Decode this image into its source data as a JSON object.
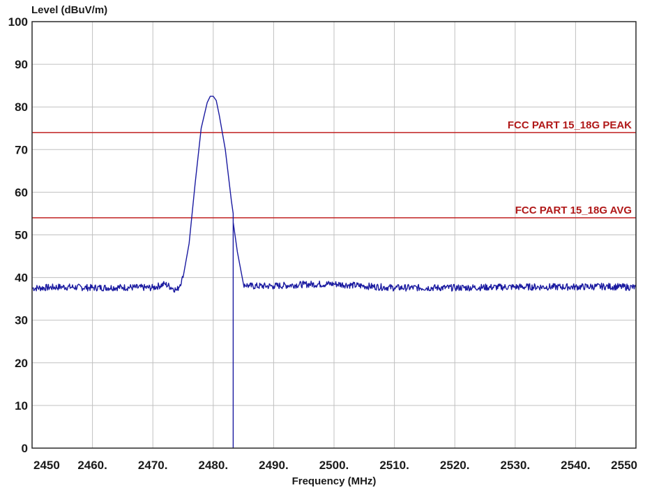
{
  "chart_data": {
    "type": "line",
    "title": "",
    "xlabel": "Frequency (MHz)",
    "ylabel": "Level (dBuV/m)",
    "xlim": [
      2450,
      2550
    ],
    "ylim": [
      0,
      100
    ],
    "grid": true,
    "x_tick_labels": [
      "2450",
      "2460.",
      "2470.",
      "2480.",
      "2490.",
      "2500.",
      "2510.",
      "2520.",
      "2530.",
      "2540.",
      "2550"
    ],
    "x_tick_values": [
      2450,
      2460,
      2470,
      2480,
      2490,
      2500,
      2510,
      2520,
      2530,
      2540,
      2550
    ],
    "y_tick_labels": [
      "0",
      "10",
      "20",
      "30",
      "40",
      "50",
      "60",
      "70",
      "80",
      "90",
      "100"
    ],
    "y_tick_values": [
      0,
      10,
      20,
      30,
      40,
      50,
      60,
      70,
      80,
      90,
      100
    ],
    "limit_lines": [
      {
        "label": "FCC PART 15_18G PEAK",
        "value": 74,
        "color": "#c02020"
      },
      {
        "label": "FCC PART 15_18G AVG",
        "value": 54,
        "color": "#c02020"
      }
    ],
    "series": [
      {
        "color": "#1a1aa0",
        "x": [
          2450,
          2455,
          2460,
          2465,
          2470,
          2472,
          2474,
          2475,
          2476,
          2477,
          2478,
          2479,
          2479.5,
          2480,
          2480.5,
          2481,
          2482,
          2483,
          2483.3,
          2483.3,
          2483.3,
          2484,
          2485,
          2486,
          2490,
          2495,
          2500,
          2505,
          2510,
          2520,
          2530,
          2540,
          2545,
          2550
        ],
        "y": [
          37.5,
          37.8,
          37.6,
          37.7,
          37.6,
          38.5,
          37,
          40,
          48,
          62,
          75,
          81,
          82.5,
          82.5,
          81.5,
          78,
          70,
          58,
          55,
          0,
          53,
          46,
          38.5,
          38,
          38,
          38.4,
          38.5,
          38,
          37.6,
          37.6,
          37.8,
          37.8,
          37.9,
          37.7
        ]
      }
    ]
  }
}
